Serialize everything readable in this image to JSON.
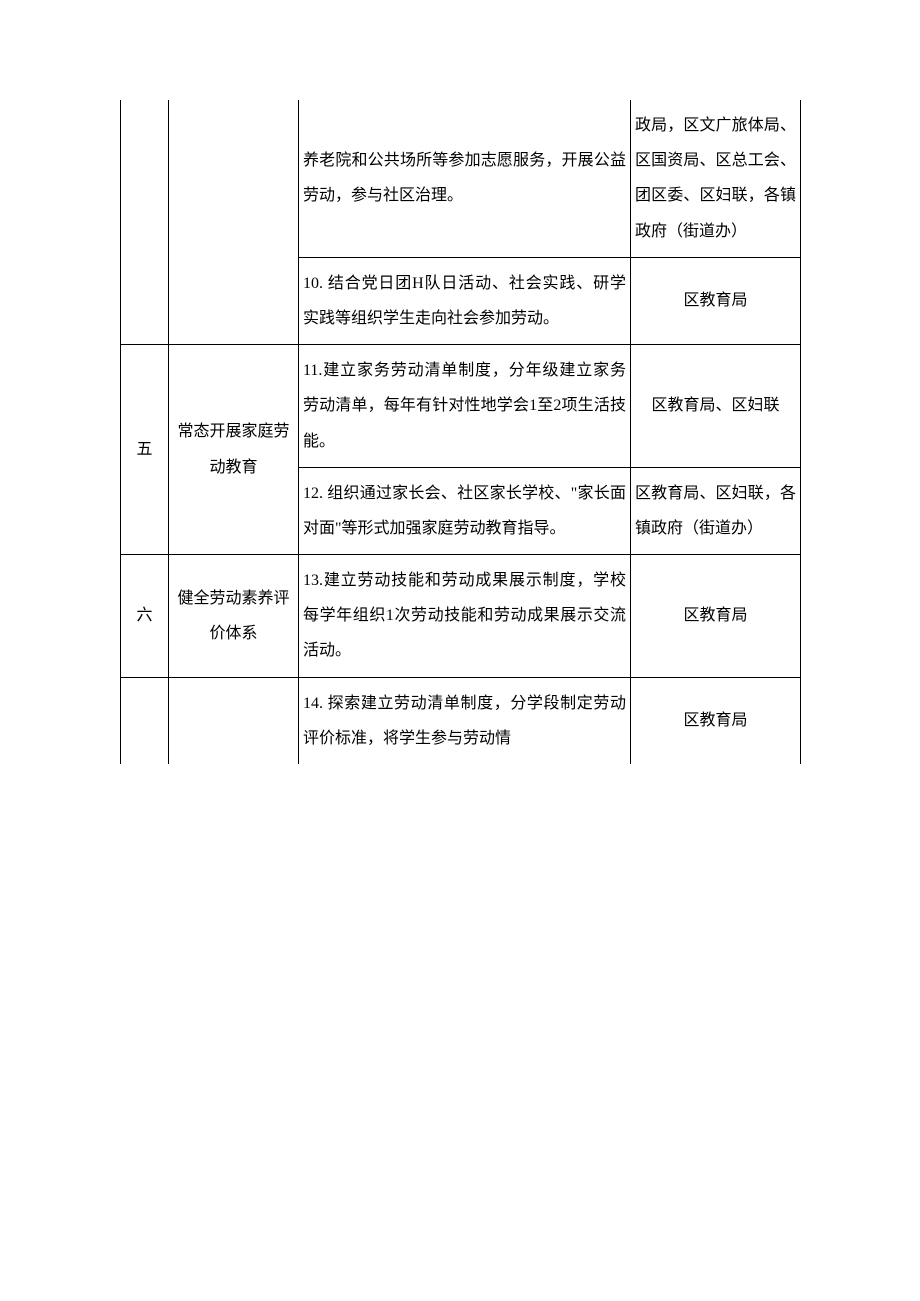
{
  "table": {
    "rows": [
      {
        "num": "",
        "category": "",
        "content": "养老院和公共场所等参加志愿服务，开展公益劳动，参与社区治理。",
        "dept": "政局，区文广旅体局、区国资局、区总工会、团区委、区妇联，各镇政府（街道办）"
      },
      {
        "content": "10. 结合党日团H队日活动、社会实践、研学实践等组织学生走向社会参加劳动。",
        "dept": "区教育局"
      },
      {
        "num": "五",
        "category": "常态开展家庭劳动教育",
        "content": "11.建立家务劳动清单制度，分年级建立家务劳动清单，每年有针对性地学会1至2项生活技能。",
        "dept": "区教育局、区妇联"
      },
      {
        "content": "12. 组织通过家长会、社区家长学校、\"家长面对面\"等形式加强家庭劳动教育指导。",
        "dept": "区教育局、区妇联，各镇政府（街道办）"
      },
      {
        "num": "六",
        "category": "健全劳动素养评价体系",
        "content": "13.建立劳动技能和劳动成果展示制度，学校每学年组织1次劳动技能和劳动成果展示交流活动。",
        "dept": "区教育局"
      },
      {
        "num": "",
        "category": "",
        "content": "14. 探索建立劳动清单制度，分学段制定劳动评价标准，将学生参与劳动情",
        "dept": "区教育局"
      }
    ]
  },
  "styles": {
    "border_color": "#000000",
    "text_color": "#000000",
    "background_color": "#ffffff",
    "font_family": "SimSun",
    "font_size": 16,
    "line_height": 2.2,
    "col_widths": {
      "num": 48,
      "category": 130,
      "content": 332,
      "dept": 170
    }
  }
}
